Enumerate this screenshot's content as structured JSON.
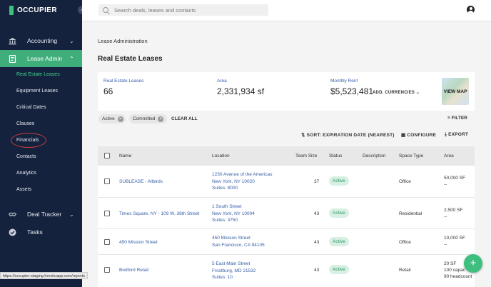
{
  "brand": {
    "name": "OCCUPIER",
    "accent": "#3fae7b",
    "sidebar_bg": "#14223d"
  },
  "sidebar": {
    "collapse_icon": "chevron-left-icon",
    "sections": [
      {
        "label": "Accounting",
        "icon": "bank-icon"
      },
      {
        "label": "Lease Admin",
        "icon": "document-icon",
        "active": true
      },
      {
        "label": "Deal Tracker",
        "icon": "handshake-icon"
      },
      {
        "label": "Tasks",
        "icon": "check-circle-icon"
      }
    ],
    "lease_admin_items": [
      {
        "label": "Real Estate Leases",
        "active": true
      },
      {
        "label": "Equipment Leases"
      },
      {
        "label": "Critical Dates"
      },
      {
        "label": "Clauses"
      },
      {
        "label": "Financials"
      },
      {
        "label": "Contacts"
      },
      {
        "label": "Analytics"
      },
      {
        "label": "Assets"
      }
    ]
  },
  "status_bar": {
    "url": "https://occupier-staging.herokuapp.com/reports"
  },
  "search": {
    "placeholder": "Search deals, leases and contacts"
  },
  "breadcrumb": "Lease Administration",
  "page_title": "Real Estate Leases",
  "summary": {
    "leases_label": "Real Estate Leases",
    "leases_value": "66",
    "area_label": "Area",
    "area_value": "2,331,934 sf",
    "rent_label": "Monthly Rent",
    "rent_value": "$5,523,481",
    "currencies_label": "ADD. CURRENCIES",
    "map_label": "VIEW MAP"
  },
  "filters": {
    "chips": [
      "Active",
      "Committed"
    ],
    "clear_all": "CLEAR ALL",
    "filter_label": "FILTER"
  },
  "toolbar": {
    "sort_label": "SORT: EXPIRATION DATE (NEAREST)",
    "configure_label": "CONFIGURE",
    "export_label": "EXPORT"
  },
  "table": {
    "headers": [
      "Name",
      "Location",
      "Team Size",
      "Status",
      "Description",
      "Space Type",
      "Area"
    ],
    "rows": [
      {
        "name": "SUBLEASE - Allbirds",
        "address1": "1230 Avenue of the Americas",
        "address2": "New York, NY 10020",
        "address3": "Suites: 8000",
        "team_size": "37",
        "status": "Active",
        "space_type": "Office",
        "area1": "50,000 SF",
        "area2": "--",
        "area3": ""
      },
      {
        "name": "Times Square, NY - 109 W. 38th Street",
        "address1": "1 South Street",
        "address2": "New York, NY 10004",
        "address3": "Suites: 3750",
        "team_size": "43",
        "status": "Active",
        "space_type": "Residential",
        "area1": "2,500 SF",
        "area2": "--",
        "area3": ""
      },
      {
        "name": "450 Mission Street",
        "address1": "450 Mission Street",
        "address2": "San Francisco, CA 94105",
        "address3": "",
        "team_size": "43",
        "status": "Active",
        "space_type": "Office",
        "area1": "10,000 SF",
        "area2": "--",
        "area3": ""
      },
      {
        "name": "Bedford Retail",
        "address1": "5 East Main Street",
        "address2": "Frostburg, MD 21532",
        "address3": "Suites: 10",
        "team_size": "43",
        "status": "Active",
        "space_type": "Retail",
        "area1": "20 SF",
        "area2": "100 capac",
        "area3": "90 headcount"
      }
    ]
  },
  "fab_label": "+"
}
